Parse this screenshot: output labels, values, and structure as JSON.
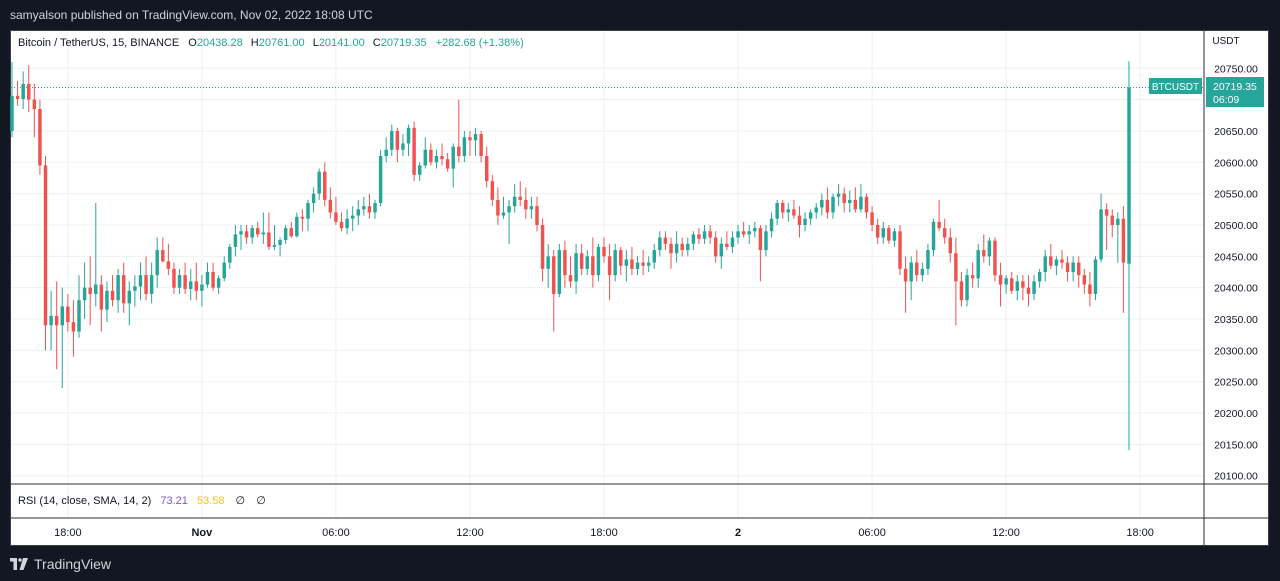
{
  "publish_line": "samyalson published on TradingView.com, Nov 02, 2022 18:08 UTC",
  "legend": {
    "symbol": "Bitcoin / TetherUS, 15, BINANCE",
    "o_label": "O",
    "o_value": "20438.28",
    "h_label": "H",
    "h_value": "20761.00",
    "l_label": "L",
    "l_value": "20141.00",
    "c_label": "C",
    "c_value": "20719.35",
    "change": "+282.68 (+1.38%)"
  },
  "price_tag": {
    "symbol": "BTCUSDT",
    "price": "20719.35",
    "countdown": "06:09"
  },
  "rsi": {
    "label": "RSI (14, close, SMA, 14, 2)",
    "value1": "73.21",
    "value2": "53.58",
    "na1": "∅",
    "na2": "∅"
  },
  "footer": {
    "brand": "TradingView",
    "logo_icon": "tradingview-logo-icon"
  },
  "colors": {
    "up": "#26a69a",
    "down": "#ef5350",
    "background": "#131722",
    "rsi_value": "#7e57c2",
    "rsi_ma": "#f0c419"
  },
  "chart_data": {
    "type": "candlestick",
    "unit_label": "USDT",
    "interval_minutes": 15,
    "ylim": [
      20080,
      20780
    ],
    "y_ticks": [
      "20750.00",
      "20700.00",
      "20650.00",
      "20600.00",
      "20550.00",
      "20500.00",
      "20450.00",
      "20400.00",
      "20350.00",
      "20300.00",
      "20250.00",
      "20200.00",
      "20150.00",
      "20100.00"
    ],
    "x_tick_labels": [
      "18:00",
      "Nov",
      "06:00",
      "12:00",
      "18:00",
      "2",
      "06:00",
      "12:00",
      "18:00"
    ],
    "last_price": 20719.35,
    "grid": true,
    "ohlc": [
      [
        20650,
        20760,
        20640,
        20706
      ],
      [
        20706,
        20730,
        20690,
        20701
      ],
      [
        20701,
        20745,
        20685,
        20725
      ],
      [
        20725,
        20755,
        20680,
        20700
      ],
      [
        20700,
        20725,
        20640,
        20685
      ],
      [
        20685,
        20700,
        20580,
        20595
      ],
      [
        20595,
        20610,
        20300,
        20340
      ],
      [
        20340,
        20395,
        20300,
        20355
      ],
      [
        20355,
        20410,
        20270,
        20340
      ],
      [
        20340,
        20400,
        20240,
        20370
      ],
      [
        20370,
        20390,
        20330,
        20345
      ],
      [
        20345,
        20380,
        20290,
        20330
      ],
      [
        20330,
        20420,
        20320,
        20380
      ],
      [
        20380,
        20440,
        20350,
        20400
      ],
      [
        20400,
        20450,
        20340,
        20390
      ],
      [
        20390,
        20535,
        20370,
        20405
      ],
      [
        20405,
        20420,
        20330,
        20365
      ],
      [
        20365,
        20410,
        20345,
        20395
      ],
      [
        20395,
        20420,
        20370,
        20380
      ],
      [
        20380,
        20430,
        20360,
        20420
      ],
      [
        20420,
        20440,
        20360,
        20375
      ],
      [
        20375,
        20410,
        20340,
        20395
      ],
      [
        20395,
        20420,
        20370,
        20402
      ],
      [
        20402,
        20440,
        20380,
        20420
      ],
      [
        20420,
        20450,
        20380,
        20390
      ],
      [
        20390,
        20440,
        20375,
        20420
      ],
      [
        20420,
        20480,
        20400,
        20460
      ],
      [
        20460,
        20480,
        20440,
        20442
      ],
      [
        20442,
        20470,
        20420,
        20430
      ],
      [
        20430,
        20440,
        20390,
        20400
      ],
      [
        20400,
        20430,
        20390,
        20420
      ],
      [
        20420,
        20440,
        20390,
        20398
      ],
      [
        20398,
        20430,
        20380,
        20410
      ],
      [
        20410,
        20440,
        20380,
        20395
      ],
      [
        20395,
        20420,
        20370,
        20405
      ],
      [
        20405,
        20440,
        20400,
        20425
      ],
      [
        20425,
        20440,
        20395,
        20400
      ],
      [
        20400,
        20420,
        20390,
        20415
      ],
      [
        20415,
        20450,
        20410,
        20440
      ],
      [
        20440,
        20470,
        20430,
        20465
      ],
      [
        20465,
        20500,
        20450,
        20485
      ],
      [
        20485,
        20500,
        20460,
        20490
      ],
      [
        20490,
        20500,
        20470,
        20480
      ],
      [
        20480,
        20500,
        20470,
        20495
      ],
      [
        20495,
        20505,
        20480,
        20485
      ],
      [
        20485,
        20520,
        20470,
        20488
      ],
      [
        20488,
        20520,
        20460,
        20465
      ],
      [
        20465,
        20500,
        20460,
        20468
      ],
      [
        20468,
        20480,
        20450,
        20476
      ],
      [
        20476,
        20500,
        20470,
        20495
      ],
      [
        20495,
        20505,
        20480,
        20482
      ],
      [
        20482,
        20520,
        20480,
        20513
      ],
      [
        20513,
        20525,
        20490,
        20510
      ],
      [
        20510,
        20540,
        20490,
        20535
      ],
      [
        20535,
        20560,
        20520,
        20550
      ],
      [
        20550,
        20590,
        20540,
        20585
      ],
      [
        20585,
        20600,
        20530,
        20540
      ],
      [
        20540,
        20560,
        20510,
        20520
      ],
      [
        20520,
        20545,
        20500,
        20505
      ],
      [
        20505,
        20520,
        20490,
        20495
      ],
      [
        20495,
        20525,
        20485,
        20510
      ],
      [
        20510,
        20530,
        20490,
        20515
      ],
      [
        20515,
        20540,
        20500,
        20525
      ],
      [
        20525,
        20545,
        20515,
        20530
      ],
      [
        20530,
        20550,
        20510,
        20520
      ],
      [
        20520,
        20540,
        20510,
        20535
      ],
      [
        20535,
        20620,
        20530,
        20610
      ],
      [
        20610,
        20640,
        20600,
        20620
      ],
      [
        20620,
        20660,
        20610,
        20650
      ],
      [
        20650,
        20655,
        20600,
        20620
      ],
      [
        20620,
        20645,
        20610,
        20630
      ],
      [
        20630,
        20660,
        20610,
        20655
      ],
      [
        20655,
        20665,
        20570,
        20580
      ],
      [
        20580,
        20600,
        20570,
        20595
      ],
      [
        20595,
        20640,
        20590,
        20620
      ],
      [
        20620,
        20630,
        20595,
        20600
      ],
      [
        20600,
        20620,
        20590,
        20610
      ],
      [
        20610,
        20630,
        20595,
        20605
      ],
      [
        20605,
        20615,
        20585,
        20590
      ],
      [
        20590,
        20630,
        20560,
        20625
      ],
      [
        20625,
        20700,
        20600,
        20610
      ],
      [
        20610,
        20650,
        20600,
        20640
      ],
      [
        20640,
        20650,
        20610,
        20635
      ],
      [
        20635,
        20655,
        20610,
        20645
      ],
      [
        20645,
        20650,
        20600,
        20610
      ],
      [
        20610,
        20625,
        20560,
        20570
      ],
      [
        20570,
        20580,
        20530,
        20540
      ],
      [
        20540,
        20560,
        20500,
        20515
      ],
      [
        20515,
        20545,
        20510,
        20520
      ],
      [
        20520,
        20540,
        20470,
        20530
      ],
      [
        20530,
        20565,
        20520,
        20545
      ],
      [
        20545,
        20570,
        20530,
        20540
      ],
      [
        20540,
        20560,
        20510,
        20525
      ],
      [
        20525,
        20545,
        20510,
        20530
      ],
      [
        20530,
        20545,
        20490,
        20500
      ],
      [
        20500,
        20510,
        20410,
        20430
      ],
      [
        20430,
        20470,
        20400,
        20450
      ],
      [
        20450,
        20460,
        20330,
        20390
      ],
      [
        20390,
        20470,
        20385,
        20460
      ],
      [
        20460,
        20475,
        20400,
        20420
      ],
      [
        20420,
        20450,
        20400,
        20410
      ],
      [
        20410,
        20470,
        20390,
        20455
      ],
      [
        20455,
        20470,
        20420,
        20430
      ],
      [
        20430,
        20460,
        20420,
        20450
      ],
      [
        20450,
        20480,
        20400,
        20420
      ],
      [
        20420,
        20470,
        20410,
        20465
      ],
      [
        20465,
        20480,
        20440,
        20450
      ],
      [
        20450,
        20470,
        20380,
        20420
      ],
      [
        20420,
        20470,
        20410,
        20460
      ],
      [
        20460,
        20465,
        20420,
        20435
      ],
      [
        20435,
        20460,
        20410,
        20445
      ],
      [
        20445,
        20465,
        20420,
        20430
      ],
      [
        20430,
        20450,
        20420,
        20440
      ],
      [
        20440,
        20460,
        20420,
        20435
      ],
      [
        20435,
        20450,
        20425,
        20440
      ],
      [
        20440,
        20470,
        20430,
        20460
      ],
      [
        20460,
        20490,
        20450,
        20480
      ],
      [
        20480,
        20490,
        20460,
        20470
      ],
      [
        20470,
        20480,
        20430,
        20455
      ],
      [
        20455,
        20490,
        20440,
        20470
      ],
      [
        20470,
        20480,
        20450,
        20460
      ],
      [
        20460,
        20480,
        20450,
        20470
      ],
      [
        20470,
        20490,
        20460,
        20485
      ],
      [
        20485,
        20495,
        20470,
        20478
      ],
      [
        20478,
        20500,
        20470,
        20490
      ],
      [
        20490,
        20500,
        20470,
        20480
      ],
      [
        20480,
        20490,
        20440,
        20450
      ],
      [
        20450,
        20480,
        20430,
        20470
      ],
      [
        20470,
        20490,
        20460,
        20465
      ],
      [
        20465,
        20490,
        20455,
        20480
      ],
      [
        20480,
        20500,
        20470,
        20490
      ],
      [
        20490,
        20505,
        20480,
        20485
      ],
      [
        20485,
        20500,
        20470,
        20490
      ],
      [
        20490,
        20505,
        20480,
        20495
      ],
      [
        20495,
        20500,
        20410,
        20460
      ],
      [
        20460,
        20500,
        20450,
        20490
      ],
      [
        20490,
        20520,
        20480,
        20510
      ],
      [
        20510,
        20540,
        20500,
        20535
      ],
      [
        20535,
        20540,
        20510,
        20520
      ],
      [
        20520,
        20535,
        20505,
        20525
      ],
      [
        20525,
        20540,
        20510,
        20515
      ],
      [
        20515,
        20530,
        20480,
        20500
      ],
      [
        20500,
        20520,
        20490,
        20510
      ],
      [
        20510,
        20525,
        20500,
        20520
      ],
      [
        20520,
        20535,
        20510,
        20528
      ],
      [
        20528,
        20550,
        20515,
        20540
      ],
      [
        20540,
        20560,
        20510,
        20520
      ],
      [
        20520,
        20550,
        20510,
        20545
      ],
      [
        20545,
        20565,
        20530,
        20550
      ],
      [
        20550,
        20560,
        20520,
        20535
      ],
      [
        20535,
        20555,
        20520,
        20540
      ],
      [
        20540,
        20560,
        20520,
        20525
      ],
      [
        20525,
        20565,
        20520,
        20545
      ],
      [
        20545,
        20550,
        20510,
        20520
      ],
      [
        20520,
        20530,
        20490,
        20500
      ],
      [
        20500,
        20510,
        20470,
        20480
      ],
      [
        20480,
        20505,
        20470,
        20495
      ],
      [
        20495,
        20500,
        20470,
        20475
      ],
      [
        20475,
        20495,
        20465,
        20490
      ],
      [
        20490,
        20500,
        20420,
        20430
      ],
      [
        20430,
        20450,
        20360,
        20410
      ],
      [
        20410,
        20450,
        20380,
        20440
      ],
      [
        20440,
        20460,
        20410,
        20420
      ],
      [
        20420,
        20440,
        20410,
        20430
      ],
      [
        20430,
        20470,
        20420,
        20460
      ],
      [
        20460,
        20510,
        20450,
        20505
      ],
      [
        20505,
        20540,
        20490,
        20495
      ],
      [
        20495,
        20510,
        20470,
        20480
      ],
      [
        20480,
        20495,
        20440,
        20455
      ],
      [
        20455,
        20480,
        20340,
        20410
      ],
      [
        20410,
        20425,
        20370,
        20380
      ],
      [
        20380,
        20430,
        20370,
        20420
      ],
      [
        20420,
        20440,
        20400,
        20415
      ],
      [
        20415,
        20470,
        20400,
        20460
      ],
      [
        20460,
        20485,
        20440,
        20450
      ],
      [
        20450,
        20480,
        20435,
        20475
      ],
      [
        20475,
        20480,
        20410,
        20420
      ],
      [
        20420,
        20440,
        20370,
        20405
      ],
      [
        20405,
        20420,
        20390,
        20415
      ],
      [
        20415,
        20425,
        20390,
        20395
      ],
      [
        20395,
        20420,
        20380,
        20410
      ],
      [
        20410,
        20420,
        20380,
        20400
      ],
      [
        20400,
        20420,
        20370,
        20390
      ],
      [
        20390,
        20420,
        20380,
        20410
      ],
      [
        20410,
        20430,
        20400,
        20425
      ],
      [
        20425,
        20460,
        20410,
        20450
      ],
      [
        20450,
        20470,
        20430,
        20435
      ],
      [
        20435,
        20450,
        20420,
        20445
      ],
      [
        20445,
        20460,
        20430,
        20440
      ],
      [
        20440,
        20450,
        20410,
        20425
      ],
      [
        20425,
        20450,
        20410,
        20440
      ],
      [
        20440,
        20450,
        20400,
        20420
      ],
      [
        20420,
        20430,
        20390,
        20405
      ],
      [
        20405,
        20425,
        20370,
        20390
      ],
      [
        20390,
        20450,
        20380,
        20445
      ],
      [
        20445,
        20550,
        20440,
        20525
      ],
      [
        20525,
        20535,
        20460,
        20515
      ],
      [
        20515,
        20525,
        20480,
        20500
      ],
      [
        20500,
        20520,
        20440,
        20510
      ],
      [
        20510,
        20530,
        20360,
        20440
      ],
      [
        20438.28,
        20761,
        20141,
        20719.35
      ]
    ]
  }
}
